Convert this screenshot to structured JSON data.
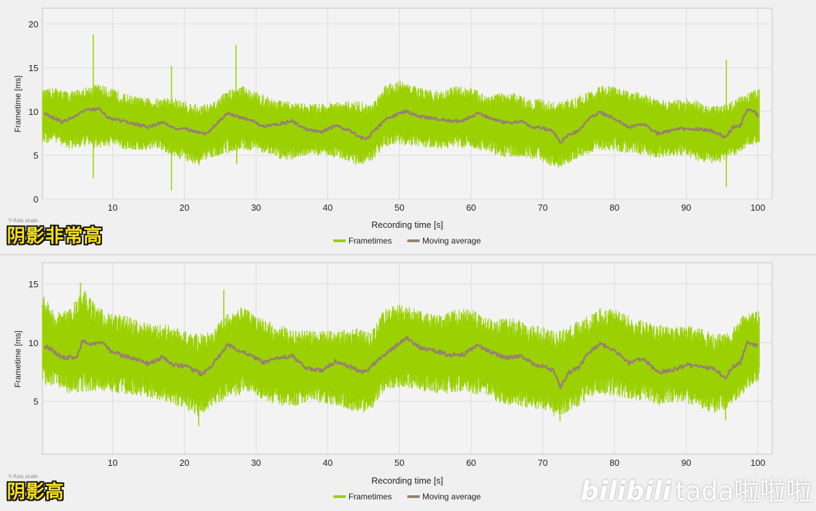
{
  "colors": {
    "frametimes": "#9bd103",
    "moving_average": "#97826f",
    "plot_background": "#f3f3f3",
    "grid": "#dcdcdc",
    "label_yellow": "#f5e11a"
  },
  "chart_data": [
    {
      "type": "line",
      "panel_label": "阴影非常高",
      "axis_caption": "Y-Axis scale",
      "xlabel": "Recording time [s]",
      "ylabel": "Frametime [ms]",
      "xlim": [
        0.2,
        102
      ],
      "ylim": [
        0,
        21.8
      ],
      "xticks": [
        10,
        20,
        30,
        40,
        50,
        60,
        70,
        80,
        90,
        100
      ],
      "yticks": [
        0,
        5,
        10,
        15,
        20
      ],
      "grid": true,
      "legend": "bottom-center",
      "series": [
        {
          "name": "Frametimes",
          "x": [
            0.5,
            2,
            4,
            6,
            8,
            10,
            12,
            14,
            16,
            18,
            20,
            22,
            24,
            26,
            28,
            30,
            32,
            34,
            36,
            38,
            40,
            42,
            44,
            46,
            48,
            50,
            52,
            54,
            56,
            58,
            60,
            62,
            64,
            66,
            68,
            70,
            72,
            74,
            76,
            78,
            80,
            82,
            84,
            86,
            88,
            90,
            92,
            94,
            96,
            98,
            100
          ],
          "upper": [
            12.5,
            12.8,
            12.3,
            12.8,
            13.2,
            12.6,
            12.0,
            11.6,
            11.5,
            11.7,
            11.2,
            10.8,
            11.0,
            12.5,
            13.0,
            12.3,
            11.6,
            11.2,
            11.0,
            10.9,
            11.0,
            11.1,
            11.3,
            10.8,
            13.2,
            13.6,
            13.0,
            12.5,
            12.4,
            13.0,
            12.8,
            12.0,
            12.1,
            12.1,
            11.6,
            11.4,
            11.0,
            11.6,
            12.1,
            13.0,
            12.9,
            12.4,
            12.1,
            11.4,
            11.3,
            11.5,
            11.2,
            10.7,
            11.0,
            12.0,
            12.6
          ],
          "lower": [
            6.3,
            6.5,
            5.6,
            6.0,
            5.8,
            6.0,
            5.6,
            5.5,
            5.7,
            5.0,
            4.4,
            3.8,
            4.8,
            5.2,
            5.6,
            5.5,
            5.0,
            4.3,
            4.8,
            5.0,
            4.8,
            4.6,
            3.8,
            4.2,
            6.0,
            6.2,
            6.0,
            5.8,
            5.7,
            6.0,
            5.6,
            5.5,
            4.8,
            4.8,
            4.6,
            4.2,
            3.5,
            4.2,
            5.0,
            5.6,
            5.4,
            5.2,
            5.0,
            4.6,
            5.0,
            4.8,
            4.2,
            4.0,
            4.6,
            5.6,
            6.4
          ],
          "spikes": [
            {
              "x": 7.3,
              "y": 18.8
            },
            {
              "x": 7.3,
              "y": 2.4
            },
            {
              "x": 18.2,
              "y": 15.2
            },
            {
              "x": 18.2,
              "y": 1.0
            },
            {
              "x": 27.2,
              "y": 17.6
            },
            {
              "x": 27.3,
              "y": 4.0
            },
            {
              "x": 95.6,
              "y": 15.9
            },
            {
              "x": 95.6,
              "y": 1.4
            }
          ]
        },
        {
          "name": "Moving average",
          "x": [
            0.5,
            1.5,
            3,
            5,
            6.5,
            8,
            9.5,
            11,
            13,
            15,
            17,
            18.5,
            20,
            21.5,
            23,
            24.5,
            26,
            27.5,
            29,
            31,
            33,
            35,
            37,
            39,
            41,
            43,
            44.5,
            45.5,
            46.5,
            48,
            50,
            51,
            53,
            55,
            57,
            59,
            61,
            63,
            65,
            67,
            68.5,
            70,
            71.5,
            72.5,
            73.5,
            75,
            76.5,
            78,
            80,
            82,
            84,
            86,
            88,
            90,
            92,
            94,
            95.5,
            96.5,
            97.5,
            98.5,
            99.5,
            100
          ],
          "y": [
            9.8,
            9.4,
            8.8,
            9.6,
            10.2,
            10.3,
            9.2,
            9.0,
            8.6,
            8.2,
            8.8,
            8.1,
            8.0,
            7.8,
            7.4,
            8.6,
            9.8,
            9.4,
            9.1,
            8.3,
            8.5,
            8.9,
            8.0,
            7.6,
            8.4,
            7.9,
            7.0,
            6.9,
            7.8,
            9.0,
            9.8,
            10.0,
            9.4,
            9.2,
            8.9,
            9.0,
            9.8,
            9.1,
            8.7,
            8.9,
            8.2,
            8.1,
            7.7,
            6.4,
            7.3,
            7.8,
            9.2,
            9.9,
            9.2,
            8.2,
            8.6,
            7.5,
            7.8,
            8.1,
            8.0,
            7.7,
            7.0,
            8.2,
            8.3,
            10.2,
            10.0,
            9.5
          ]
        }
      ]
    },
    {
      "type": "line",
      "panel_label": "阴影高",
      "axis_caption": "Y-Axis scale",
      "xlabel": "Recording time [s]",
      "ylabel": "Frametime [ms]",
      "xlim": [
        0.2,
        102
      ],
      "ylim": [
        0.5,
        16.8
      ],
      "xticks": [
        10,
        20,
        30,
        40,
        50,
        60,
        70,
        80,
        90,
        100
      ],
      "yticks": [
        5,
        10,
        15
      ],
      "grid": true,
      "legend": "bottom-center",
      "series": [
        {
          "name": "Frametimes",
          "x": [
            0.5,
            2,
            4,
            6,
            8,
            10,
            12,
            14,
            16,
            18,
            20,
            22,
            24,
            26,
            28,
            30,
            32,
            34,
            36,
            38,
            40,
            42,
            44,
            46,
            48,
            50,
            52,
            54,
            56,
            58,
            60,
            62,
            64,
            66,
            68,
            70,
            72,
            74,
            76,
            78,
            80,
            82,
            84,
            86,
            88,
            90,
            92,
            94,
            96,
            98,
            100
          ],
          "upper": [
            14.0,
            12.6,
            12.9,
            14.6,
            13.0,
            12.4,
            12.3,
            11.8,
            11.5,
            11.6,
            11.0,
            10.8,
            11.0,
            12.6,
            13.2,
            12.2,
            11.8,
            11.4,
            11.1,
            11.0,
            11.0,
            11.1,
            11.3,
            10.9,
            13.0,
            13.3,
            13.0,
            12.5,
            12.4,
            12.9,
            12.9,
            12.1,
            12.0,
            12.2,
            11.5,
            11.4,
            10.9,
            11.6,
            12.2,
            13.0,
            12.9,
            12.4,
            12.0,
            11.6,
            11.3,
            11.5,
            11.3,
            10.7,
            10.9,
            12.4,
            12.8
          ],
          "lower": [
            6.4,
            6.2,
            5.6,
            5.8,
            5.9,
            5.8,
            5.6,
            5.4,
            5.2,
            4.8,
            4.3,
            3.6,
            4.6,
            5.2,
            5.6,
            5.4,
            4.9,
            4.3,
            4.7,
            4.9,
            4.7,
            4.5,
            3.8,
            4.2,
            6.0,
            6.2,
            6.0,
            5.8,
            5.6,
            5.8,
            5.6,
            5.4,
            4.8,
            4.6,
            4.4,
            4.2,
            3.6,
            4.2,
            5.0,
            5.6,
            5.4,
            5.2,
            5.0,
            4.6,
            4.9,
            4.8,
            4.2,
            4.0,
            4.4,
            5.6,
            6.6
          ],
          "spikes": [
            {
              "x": 5.5,
              "y": 15.1
            },
            {
              "x": 25.5,
              "y": 14.5
            },
            {
              "x": 22.0,
              "y": 2.9
            },
            {
              "x": 72.4,
              "y": 3.3
            },
            {
              "x": 95.5,
              "y": 3.4
            }
          ]
        },
        {
          "name": "Moving average",
          "x": [
            0.5,
            1.5,
            3,
            5,
            5.8,
            7,
            8.5,
            9.5,
            11,
            13,
            15,
            17,
            18.5,
            20,
            21.5,
            22.5,
            23.5,
            24.5,
            26,
            27.5,
            29,
            31,
            33,
            35,
            37,
            39,
            41,
            43,
            44.5,
            45.5,
            46.5,
            48,
            50,
            51,
            53,
            55,
            57,
            59,
            61,
            63,
            65,
            67,
            68.5,
            70,
            71.5,
            72.5,
            73.5,
            75,
            76.5,
            78,
            80,
            82,
            84,
            86,
            88,
            90,
            92,
            94,
            95.5,
            96.5,
            97.5,
            98.5,
            99.5,
            100
          ],
          "y": [
            9.7,
            9.4,
            8.7,
            8.8,
            10.2,
            9.9,
            10.1,
            9.4,
            9.0,
            8.6,
            8.2,
            8.8,
            8.1,
            8.0,
            7.6,
            7.3,
            7.8,
            8.6,
            9.8,
            9.4,
            9.0,
            8.3,
            8.6,
            8.9,
            7.8,
            7.6,
            8.4,
            8.0,
            7.5,
            7.6,
            8.2,
            9.0,
            9.9,
            10.4,
            9.5,
            9.3,
            8.9,
            9.0,
            9.8,
            9.1,
            8.7,
            8.9,
            8.2,
            8.0,
            7.6,
            6.2,
            7.4,
            7.9,
            9.2,
            9.9,
            9.3,
            8.3,
            8.6,
            7.5,
            7.6,
            8.1,
            8.0,
            7.7,
            7.0,
            8.0,
            8.2,
            10.0,
            9.9,
            9.6
          ]
        }
      ]
    }
  ],
  "watermark": {
    "logo": "bilibili",
    "author": "tada啦啦啦"
  }
}
